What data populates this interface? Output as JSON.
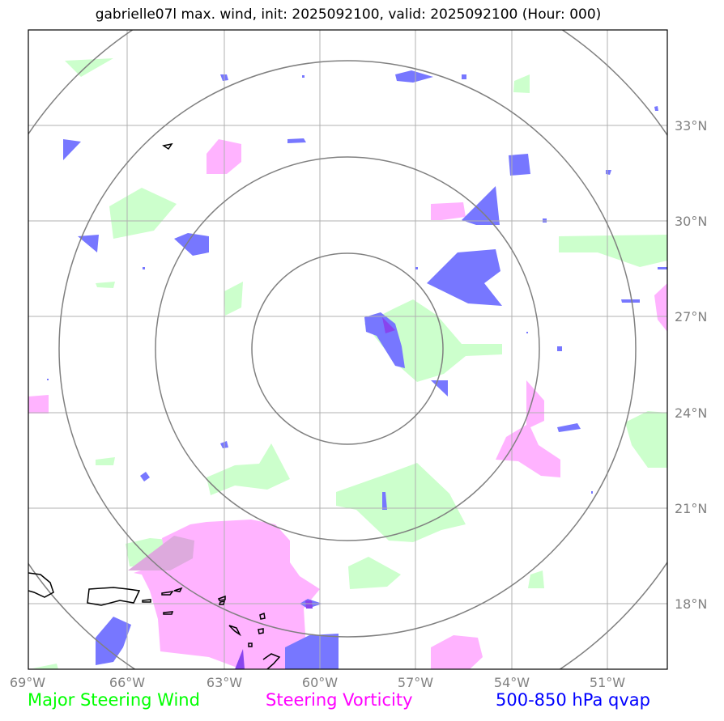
{
  "title": "gabrielle07l max. wind, init: 2025092100, valid: 2025092100 (Hour: 000)",
  "lon_ticks": [
    "69°W",
    "66°W",
    "63°W",
    "60°W",
    "57°W",
    "54°W",
    "51°W"
  ],
  "lat_ticks": [
    "33°N",
    "30°N",
    "27°N",
    "24°N",
    "21°N",
    "18°N"
  ],
  "legend": {
    "wind": {
      "label": "Major Steering Wind",
      "color": "#00ff00"
    },
    "vorticity": {
      "label": "Steering Vorticity",
      "color": "#ff00ff"
    },
    "qvap": {
      "label": "500-850 hPa qvap",
      "color": "#0000ff"
    }
  },
  "colors": {
    "wind_fill": "#ccffcc",
    "vorticity_fill": "#ffb3ff",
    "qvap_fill": "#7777ff",
    "ring": "#808080",
    "grid": "#b0b0b0",
    "coast": "#000000"
  },
  "ring_count": 4
}
